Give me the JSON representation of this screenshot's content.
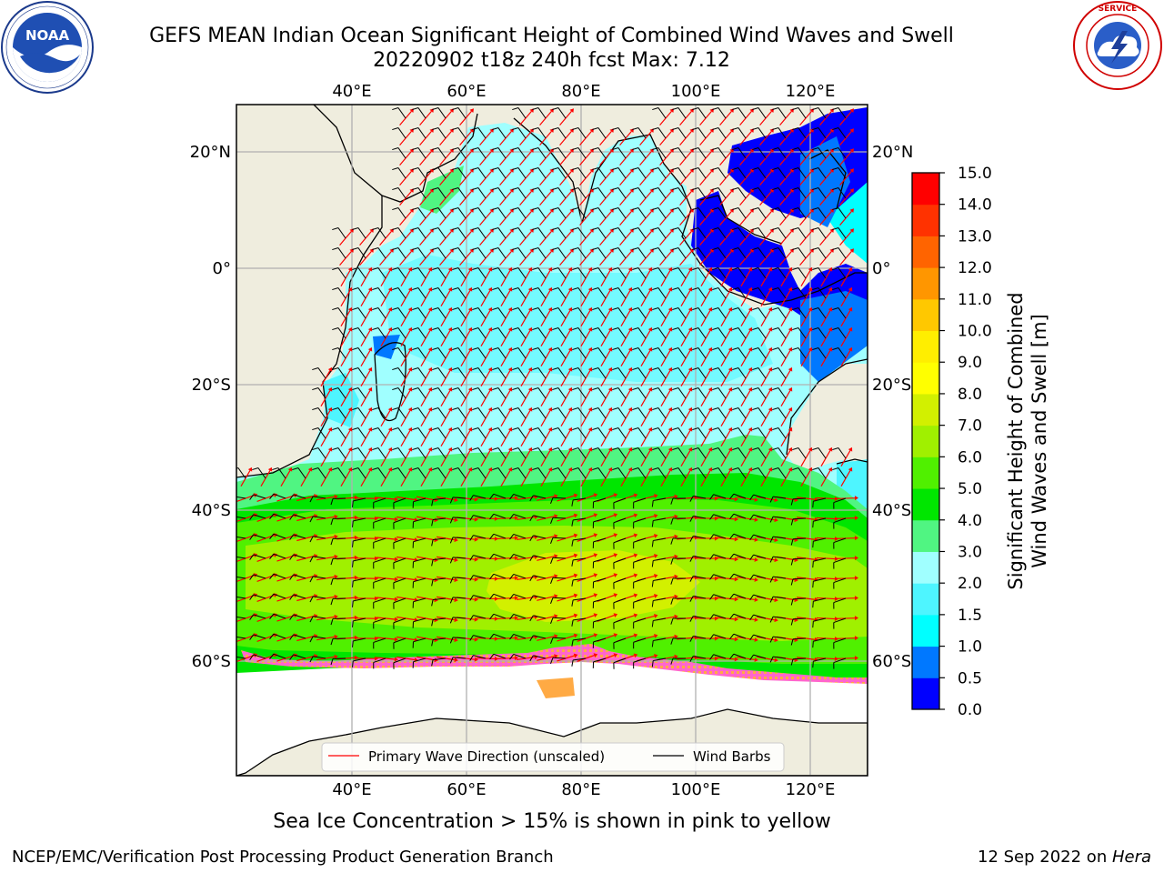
{
  "header": {
    "title_line1": "GEFS MEAN Indian Ocean Significant Height of Combined Wind Waves and Swell",
    "title_line2": "20220902 t18z 240h fcst   Max: 7.12"
  },
  "logos": {
    "left": {
      "icon": "noaa-logo",
      "text": "NOAA",
      "ring_text": "NATIONAL OCEANIC AND ATMOSPHERIC ADMINISTRATION · U.S. DEPARTMENT OF COMMERCE"
    },
    "right": {
      "icon": "nws-logo",
      "ring_text": "NATIONAL WEATHER SERVICE"
    }
  },
  "map": {
    "lon_ticks": [
      "40°E",
      "60°E",
      "80°E",
      "100°E",
      "120°E"
    ],
    "lat_ticks": [
      "20°N",
      "0°",
      "20°S",
      "40°S",
      "60°S"
    ],
    "legend": {
      "wave_label": "Primary Wave Direction (unscaled)",
      "barb_label": "Wind Barbs",
      "wave_color": "#ff0000",
      "barb_color": "#000000"
    },
    "colors": {
      "land": "#efedde",
      "ice": "#ffffff",
      "grid": "#b0b0b0"
    }
  },
  "colorbar": {
    "label_line1": "Significant Height of Combined",
    "label_line2": "Wind Waves and Swell [m]",
    "ticks": [
      "0.0",
      "0.5",
      "1.0",
      "1.5",
      "2.0",
      "3.0",
      "4.0",
      "5.0",
      "6.0",
      "7.0",
      "8.0",
      "9.0",
      "10.0",
      "11.0",
      "12.0",
      "13.0",
      "14.0",
      "15.0"
    ],
    "colors": [
      "#0000ff",
      "#0078ff",
      "#00ffff",
      "#4ef5ff",
      "#a0ffff",
      "#50f582",
      "#00e600",
      "#50f000",
      "#a0f000",
      "#d2f000",
      "#ffff00",
      "#ffee00",
      "#ffc800",
      "#ff9600",
      "#ff6400",
      "#ff3200",
      "#ff0000"
    ]
  },
  "caption": "Sea Ice Concentration > 15% is shown in pink to yellow",
  "footer": {
    "left": "NCEP/EMC/Verification Post Processing Product Generation Branch",
    "right_date": "12 Sep 2022 on ",
    "right_host": "Hera"
  }
}
